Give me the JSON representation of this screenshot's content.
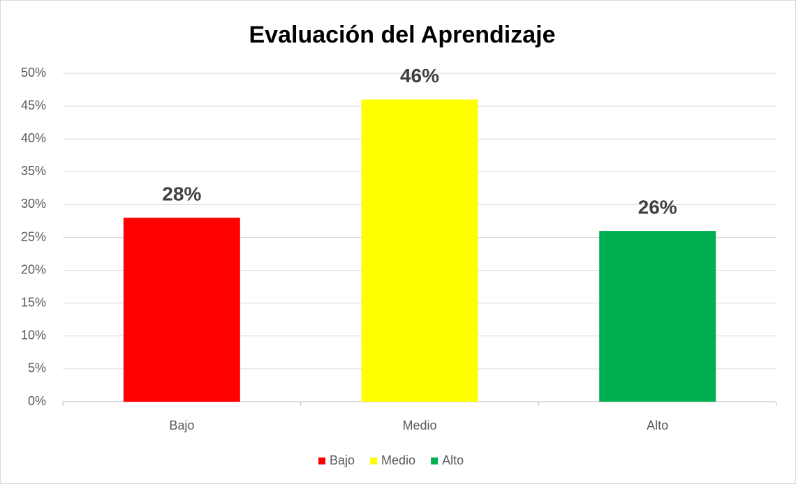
{
  "chart_data": {
    "type": "bar",
    "title": "Evaluación del Aprendizaje",
    "categories": [
      "Bajo",
      "Medio",
      "Alto"
    ],
    "values": [
      28,
      46,
      26
    ],
    "value_labels": [
      "28%",
      "46%",
      "26%"
    ],
    "colors": [
      "#ff0000",
      "#ffff00",
      "#00b050"
    ],
    "ylim": [
      0,
      50
    ],
    "yticks": [
      {
        "value": 0,
        "label": "0%"
      },
      {
        "value": 5,
        "label": "5%"
      },
      {
        "value": 10,
        "label": "10%"
      },
      {
        "value": 15,
        "label": "15%"
      },
      {
        "value": 20,
        "label": "20%"
      },
      {
        "value": 25,
        "label": "25%"
      },
      {
        "value": 30,
        "label": "30%"
      },
      {
        "value": 35,
        "label": "35%"
      },
      {
        "value": 40,
        "label": "40%"
      },
      {
        "value": 45,
        "label": "45%"
      },
      {
        "value": 50,
        "label": "50%"
      }
    ],
    "grid": true,
    "legend": "bottom"
  }
}
